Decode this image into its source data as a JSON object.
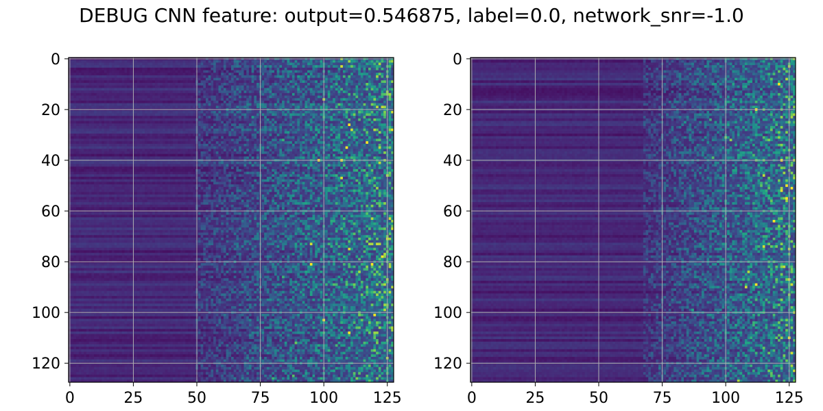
{
  "figure": {
    "title": "DEBUG CNN feature: output=0.546875, label=0.0, network_snr=-1.0"
  },
  "chart_data": [
    {
      "type": "heatmap",
      "colormap": "viridis",
      "shape": [
        128,
        128
      ],
      "xlim": [
        0,
        127
      ],
      "ylim": [
        127,
        0
      ],
      "xticks": [
        0,
        25,
        50,
        75,
        100,
        125
      ],
      "yticks": [
        0,
        20,
        40,
        60,
        80,
        100,
        120
      ],
      "grid": true,
      "structure": "horizontal row bands; low values (dark purple) for columns 0-50, increasingly noisy mid values for columns 75-127",
      "highlights": [
        {
          "x": 110,
          "y": 26
        },
        {
          "x": 98,
          "y": 40
        },
        {
          "x": 107,
          "y": 40
        },
        {
          "x": 119,
          "y": 81
        },
        {
          "x": 95,
          "y": 81
        }
      ]
    },
    {
      "type": "heatmap",
      "colormap": "viridis",
      "shape": [
        128,
        128
      ],
      "xlim": [
        0,
        127
      ],
      "ylim": [
        127,
        0
      ],
      "xticks": [
        0,
        25,
        50,
        75,
        100,
        125
      ],
      "yticks": [
        0,
        20,
        40,
        60,
        80,
        100,
        120
      ],
      "grid": true,
      "structure": "horizontal row bands; low values (dark purple) for columns 0-70, increasingly noisy mid values for columns 75-127",
      "highlights": [
        {
          "x": 112,
          "y": 20
        },
        {
          "x": 121,
          "y": 10
        },
        {
          "x": 125,
          "y": 110
        },
        {
          "x": 122,
          "y": 40
        }
      ]
    }
  ]
}
